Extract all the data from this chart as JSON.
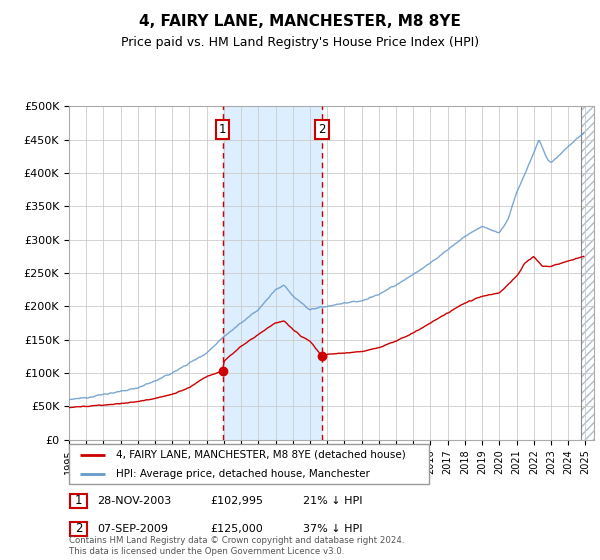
{
  "title": "4, FAIRY LANE, MANCHESTER, M8 8YE",
  "subtitle": "Price paid vs. HM Land Registry's House Price Index (HPI)",
  "ylim": [
    0,
    500000
  ],
  "yticks": [
    0,
    50000,
    100000,
    150000,
    200000,
    250000,
    300000,
    350000,
    400000,
    450000,
    500000
  ],
  "ytick_labels": [
    "£0",
    "£50K",
    "£100K",
    "£150K",
    "£200K",
    "£250K",
    "£300K",
    "£350K",
    "£400K",
    "£450K",
    "£500K"
  ],
  "xlim_start": 1995.0,
  "xlim_end": 2025.5,
  "purchase1_x": 2003.92,
  "purchase1_y": 102995,
  "purchase2_x": 2009.69,
  "purchase2_y": 125000,
  "purchase1_date": "28-NOV-2003",
  "purchase1_price": "£102,995",
  "purchase1_hpi": "21% ↓ HPI",
  "purchase2_date": "07-SEP-2009",
  "purchase2_price": "£125,000",
  "purchase2_hpi": "37% ↓ HPI",
  "legend1": "4, FAIRY LANE, MANCHESTER, M8 8YE (detached house)",
  "legend2": "HPI: Average price, detached house, Manchester",
  "footer": "Contains HM Land Registry data © Crown copyright and database right 2024.\nThis data is licensed under the Open Government Licence v3.0.",
  "red_color": "#cc0000",
  "blue_color": "#6699cc",
  "bg_color": "#ffffff",
  "grid_color": "#cccccc",
  "shaded_region_color": "#ddeeff",
  "hatch_region_start": 2024.75,
  "blue_key_years": [
    1995,
    1996,
    1997,
    1998,
    1999,
    2000,
    2001,
    2002,
    2003,
    2004,
    2005,
    2006,
    2007,
    2007.5,
    2008,
    2008.5,
    2009,
    2009.5,
    2010,
    2011,
    2012,
    2013,
    2014,
    2015,
    2016,
    2017,
    2018,
    2019,
    2020,
    2020.5,
    2021,
    2022,
    2022.3,
    2022.8,
    2023,
    2024,
    2024.9
  ],
  "blue_key_vals": [
    60000,
    63000,
    68000,
    72000,
    78000,
    88000,
    100000,
    115000,
    130000,
    155000,
    175000,
    195000,
    225000,
    232000,
    215000,
    205000,
    195000,
    198000,
    200000,
    205000,
    208000,
    218000,
    232000,
    248000,
    265000,
    285000,
    305000,
    320000,
    310000,
    330000,
    370000,
    430000,
    450000,
    420000,
    415000,
    440000,
    460000
  ],
  "red_key_years": [
    1995,
    1996,
    1997,
    1998,
    1999,
    2000,
    2001,
    2002,
    2003,
    2003.92,
    2004,
    2005,
    2006,
    2007,
    2007.5,
    2008,
    2008.5,
    2009,
    2009.69,
    2010,
    2011,
    2012,
    2013,
    2014,
    2015,
    2016,
    2017,
    2018,
    2019,
    2020,
    2021,
    2021.5,
    2022,
    2022.5,
    2023,
    2024,
    2024.9
  ],
  "red_key_vals": [
    48000,
    50000,
    52000,
    54000,
    57000,
    62000,
    68000,
    78000,
    95000,
    102995,
    118000,
    140000,
    158000,
    175000,
    178000,
    165000,
    155000,
    148000,
    125000,
    128000,
    130000,
    132000,
    138000,
    148000,
    160000,
    175000,
    190000,
    205000,
    215000,
    220000,
    245000,
    265000,
    275000,
    260000,
    260000,
    268000,
    275000
  ]
}
